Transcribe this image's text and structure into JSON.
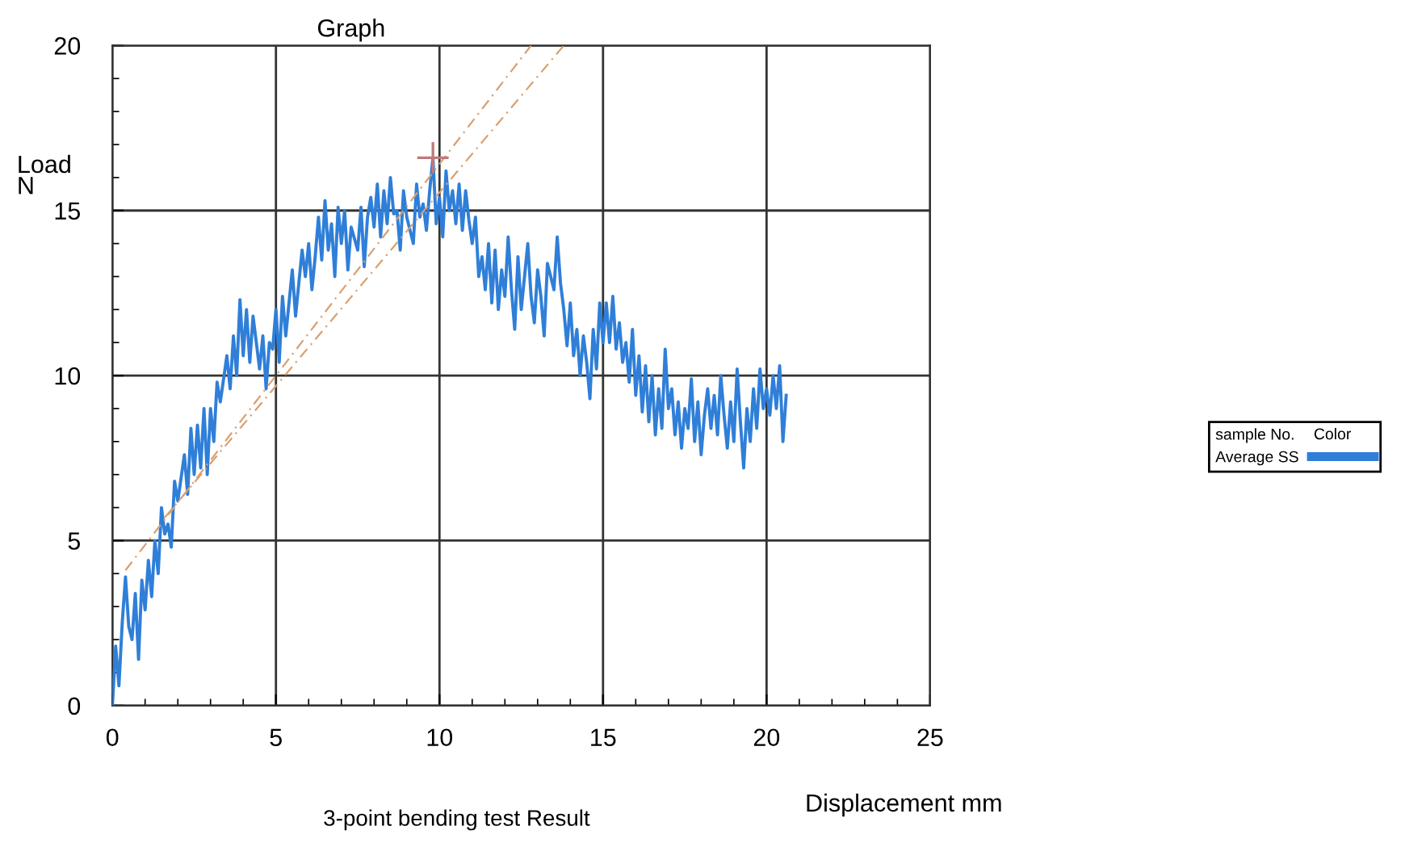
{
  "chart_data": {
    "type": "line",
    "title": "Graph",
    "xlabel": "Displacement mm",
    "ylabel": "Load\nN",
    "legend_title": "sample No.",
    "legend": "right",
    "grid": true,
    "xlim": [
      0,
      25
    ],
    "ylim": [
      0,
      20
    ],
    "xticks": [
      0,
      {
        "value": 1,
        "label": null
      },
      {
        "value": 2,
        "label": null
      },
      {
        "value": 3,
        "label": null
      },
      {
        "value": 4,
        "label": null
      },
      5,
      {
        "value": 6,
        "label": null
      },
      {
        "value": 7,
        "label": null
      },
      {
        "value": 8,
        "label": null
      },
      {
        "value": 9,
        "label": null
      },
      10,
      {
        "value": 11,
        "label": null
      },
      {
        "value": 12,
        "label": null
      },
      {
        "value": 13,
        "label": null
      },
      {
        "value": 14,
        "label": null
      },
      15,
      {
        "value": 16,
        "label": null
      },
      {
        "value": 17,
        "label": null
      },
      {
        "value": 18,
        "label": null
      },
      {
        "value": 19,
        "label": null
      },
      20,
      {
        "value": 21,
        "label": null
      },
      {
        "value": 22,
        "label": null
      },
      {
        "value": 23,
        "label": null
      },
      {
        "value": 24,
        "label": null
      },
      25
    ],
    "yticks": [
      0,
      {
        "value": 1,
        "label": null
      },
      {
        "value": 2,
        "label": null
      },
      {
        "value": 3,
        "label": null
      },
      {
        "value": 4,
        "label": null
      },
      5,
      {
        "value": 6,
        "label": null
      },
      {
        "value": 7,
        "label": null
      },
      {
        "value": 8,
        "label": null
      },
      {
        "value": 9,
        "label": null
      },
      10,
      {
        "value": 11,
        "label": null
      },
      {
        "value": 12,
        "label": null
      },
      {
        "value": 13,
        "label": null
      },
      {
        "value": 14,
        "label": null
      },
      15,
      {
        "value": 16,
        "label": null
      },
      {
        "value": 17,
        "label": null
      },
      {
        "value": 18,
        "label": null
      },
      {
        "value": 19,
        "label": null
      },
      20
    ],
    "annotations": [
      "Color",
      "3-point bending test Result"
    ],
    "series": [
      {
        "name": "Average SS",
        "color": "#2f7fd8",
        "x": [
          0,
          0.1,
          0.2,
          0.3,
          0.4,
          0.5,
          0.6,
          0.7,
          0.8,
          0.9,
          1.0,
          1.1,
          1.2,
          1.3,
          1.4,
          1.5,
          1.6,
          1.7,
          1.8,
          1.9,
          2.0,
          2.2,
          2.3,
          2.4,
          2.5,
          2.6,
          2.7,
          2.8,
          2.9,
          3.0,
          3.1,
          3.2,
          3.3,
          3.5,
          3.6,
          3.7,
          3.8,
          3.9,
          4.0,
          4.1,
          4.2,
          4.3,
          4.5,
          4.6,
          4.7,
          4.8,
          4.9,
          5.0,
          5.1,
          5.2,
          5.3,
          5.5,
          5.6,
          5.7,
          5.8,
          5.9,
          6.0,
          6.1,
          6.2,
          6.3,
          6.4,
          6.5,
          6.6,
          6.7,
          6.8,
          6.9,
          7.0,
          7.1,
          7.2,
          7.3,
          7.5,
          7.6,
          7.7,
          7.8,
          7.9,
          8.0,
          8.1,
          8.2,
          8.3,
          8.4,
          8.5,
          8.6,
          8.7,
          8.8,
          8.9,
          9.0,
          9.2,
          9.3,
          9.4,
          9.5,
          9.6,
          9.7,
          9.8,
          9.9,
          10.0,
          10.1,
          10.2,
          10.3,
          10.4,
          10.5,
          10.6,
          10.7,
          10.8,
          10.9,
          11.0,
          11.1,
          11.2,
          11.3,
          11.4,
          11.5,
          11.6,
          11.7,
          11.8,
          11.9,
          12.0,
          12.1,
          12.2,
          12.3,
          12.4,
          12.5,
          12.7,
          12.8,
          12.9,
          13.0,
          13.1,
          13.2,
          13.3,
          13.5,
          13.6,
          13.7,
          13.8,
          13.9,
          14.0,
          14.1,
          14.2,
          14.3,
          14.4,
          14.5,
          14.6,
          14.7,
          14.8,
          14.9,
          15.0,
          15.1,
          15.2,
          15.3,
          15.4,
          15.5,
          15.6,
          15.7,
          15.8,
          15.9,
          16.0,
          16.1,
          16.2,
          16.3,
          16.4,
          16.5,
          16.6,
          16.7,
          16.8,
          16.9,
          17.0,
          17.1,
          17.2,
          17.3,
          17.4,
          17.5,
          17.6,
          17.7,
          17.8,
          17.9,
          18.0,
          18.1,
          18.2,
          18.3,
          18.4,
          18.5,
          18.6,
          18.7,
          18.8,
          18.9,
          19.0,
          19.1,
          19.2,
          19.3,
          19.4,
          19.5,
          19.6,
          19.7,
          19.8,
          19.9,
          20.0,
          20.1,
          20.2,
          20.3,
          20.4,
          20.5,
          20.6
        ],
        "values": [
          0,
          1.8,
          0.6,
          2.5,
          3.9,
          2.4,
          2.0,
          3.4,
          1.4,
          3.8,
          2.9,
          4.4,
          3.3,
          5.0,
          4.0,
          6.0,
          5.2,
          5.5,
          4.8,
          6.8,
          6.2,
          7.6,
          6.4,
          8.4,
          7.0,
          8.5,
          7.2,
          9.0,
          7.0,
          9.0,
          8.0,
          9.8,
          9.2,
          10.6,
          9.6,
          11.2,
          10.0,
          12.3,
          10.6,
          12.0,
          10.4,
          11.8,
          10.2,
          11.2,
          9.6,
          11.0,
          10.8,
          12.0,
          10.4,
          12.4,
          11.2,
          13.2,
          11.8,
          12.8,
          13.8,
          13.0,
          14.0,
          12.6,
          13.6,
          14.8,
          13.5,
          15.3,
          13.8,
          14.6,
          13.0,
          15.1,
          14.0,
          15.0,
          13.2,
          14.5,
          13.8,
          15.1,
          13.3,
          14.8,
          15.4,
          14.5,
          15.8,
          14.2,
          15.6,
          14.6,
          16.0,
          14.9,
          15.0,
          13.8,
          15.6,
          14.8,
          14.0,
          15.8,
          14.8,
          15.2,
          14.4,
          15.6,
          16.6,
          14.6,
          15.4,
          14.2,
          16.2,
          15.0,
          15.6,
          14.6,
          15.8,
          14.4,
          15.6,
          14.7,
          14.0,
          14.8,
          13.0,
          13.6,
          12.6,
          14.0,
          12.2,
          13.8,
          12.0,
          13.2,
          12.4,
          14.2,
          12.6,
          11.4,
          13.6,
          12.0,
          14.0,
          12.4,
          11.6,
          13.2,
          12.4,
          11.2,
          13.4,
          12.6,
          14.2,
          12.8,
          12.0,
          10.9,
          12.2,
          10.6,
          11.4,
          10.0,
          11.2,
          10.4,
          9.3,
          11.4,
          10.2,
          12.2,
          11.0,
          12.2,
          11.0,
          12.4,
          10.8,
          11.6,
          10.4,
          11.0,
          9.8,
          11.4,
          9.4,
          10.6,
          8.9,
          10.3,
          8.6,
          10.0,
          8.2,
          9.6,
          8.4,
          10.8,
          9.0,
          9.6,
          8.2,
          9.2,
          7.8,
          9.0,
          8.4,
          9.9,
          8.0,
          9.2,
          7.6,
          8.8,
          9.6,
          8.4,
          9.4,
          8.2,
          10.0,
          8.8,
          7.8,
          9.2,
          8.0,
          10.2,
          8.6,
          7.2,
          9.0,
          8.0,
          9.6,
          8.4,
          10.2,
          9.0,
          9.6,
          8.8,
          10.0,
          9.0,
          10.3,
          8.0,
          9.4
        ]
      },
      {
        "type": "line",
        "line_style": "dashed",
        "color": "#d9a070",
        "x": [
          0.4,
          12.8
        ],
        "values": [
          4.1,
          20
        ]
      },
      {
        "type": "line",
        "line_style": "dashed",
        "color": "#d9a070",
        "x": [
          1.6,
          13.8
        ],
        "values": [
          5.7,
          20
        ]
      },
      {
        "type": "scatter",
        "marker": "cross",
        "color": "#c07a7a",
        "x": [
          9.8
        ],
        "values": [
          16.6
        ]
      }
    ]
  }
}
